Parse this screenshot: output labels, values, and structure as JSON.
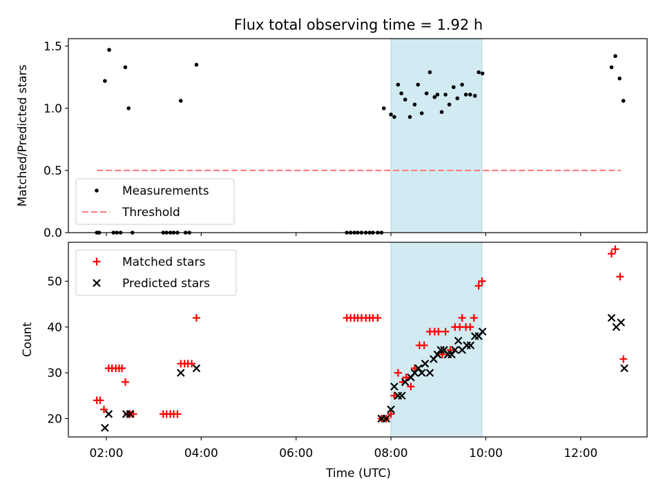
{
  "title": "Flux total observing time = 1.92 h",
  "colors": {
    "measurement": "#000000",
    "threshold": "#ff7f7f",
    "matched": "#ff0000",
    "predicted": "#000000",
    "highlight": "#add8e6"
  },
  "chart_data": [
    {
      "type": "scatter",
      "ylabel": "Matched/Predicted stars",
      "xlabel": "",
      "xlim": [
        1.2,
        13.4
      ],
      "ylim": [
        0,
        1.56
      ],
      "x_ticks": [
        2,
        4,
        6,
        8,
        10,
        12
      ],
      "y_ticks": [
        0,
        0.5,
        1.0,
        1.5
      ],
      "y_tick_labels": [
        "0.0",
        "0.5",
        "1.0",
        "1.5"
      ],
      "show_x_tick_labels": false,
      "highlight_span": [
        8.0,
        9.92
      ],
      "legend": {
        "position": "lower-left",
        "entries": [
          {
            "label": "Measurements",
            "marker": "dot"
          },
          {
            "label": "Threshold",
            "marker": "dash"
          }
        ]
      },
      "threshold": {
        "name": "Threshold",
        "y": 0.5,
        "x_range": [
          1.8,
          12.85
        ]
      },
      "series": [
        {
          "name": "Measurements",
          "points": [
            [
              1.8,
              0
            ],
            [
              1.85,
              0
            ],
            [
              1.97,
              1.22
            ],
            [
              2.06,
              1.47
            ],
            [
              2.15,
              0
            ],
            [
              2.22,
              0
            ],
            [
              2.3,
              0
            ],
            [
              2.4,
              1.33
            ],
            [
              2.47,
              1.0
            ],
            [
              2.55,
              0
            ],
            [
              3.2,
              0
            ],
            [
              3.27,
              0
            ],
            [
              3.35,
              0
            ],
            [
              3.42,
              0
            ],
            [
              3.5,
              0
            ],
            [
              3.57,
              1.06
            ],
            [
              3.67,
              0
            ],
            [
              3.75,
              0
            ],
            [
              3.9,
              1.35
            ],
            [
              7.07,
              0
            ],
            [
              7.15,
              0
            ],
            [
              7.23,
              0
            ],
            [
              7.3,
              0
            ],
            [
              7.38,
              0
            ],
            [
              7.47,
              0
            ],
            [
              7.55,
              0
            ],
            [
              7.62,
              0
            ],
            [
              7.72,
              0
            ],
            [
              7.8,
              0.0
            ],
            [
              7.85,
              1.0
            ],
            [
              8.0,
              0.95
            ],
            [
              8.07,
              0.93
            ],
            [
              8.15,
              1.19
            ],
            [
              8.22,
              1.12
            ],
            [
              8.3,
              1.07
            ],
            [
              8.4,
              0.93
            ],
            [
              8.5,
              1.03
            ],
            [
              8.57,
              1.19
            ],
            [
              8.65,
              0.96
            ],
            [
              8.75,
              1.12
            ],
            [
              8.82,
              1.29
            ],
            [
              8.92,
              1.09
            ],
            [
              8.98,
              1.11
            ],
            [
              9.07,
              0.97
            ],
            [
              9.15,
              1.11
            ],
            [
              9.23,
              1.03
            ],
            [
              9.32,
              1.17
            ],
            [
              9.4,
              1.08
            ],
            [
              9.5,
              1.19
            ],
            [
              9.58,
              1.11
            ],
            [
              9.67,
              1.11
            ],
            [
              9.77,
              1.1
            ],
            [
              9.85,
              1.29
            ],
            [
              9.93,
              1.28
            ],
            [
              12.65,
              1.33
            ],
            [
              12.73,
              1.42
            ],
            [
              12.82,
              1.24
            ],
            [
              12.9,
              1.06
            ]
          ]
        }
      ]
    },
    {
      "type": "scatter",
      "ylabel": "Count",
      "xlabel": "Time (UTC)",
      "xlim": [
        1.2,
        13.4
      ],
      "ylim": [
        16,
        58.5
      ],
      "x_ticks": [
        2,
        4,
        6,
        8,
        10,
        12
      ],
      "x_tick_labels": [
        "02:00",
        "04:00",
        "06:00",
        "08:00",
        "10:00",
        "12:00"
      ],
      "y_ticks": [
        20,
        30,
        40,
        50
      ],
      "y_tick_labels": [
        "20",
        "30",
        "40",
        "50"
      ],
      "show_x_tick_labels": true,
      "highlight_span": [
        8.0,
        9.92
      ],
      "legend": {
        "position": "upper-left",
        "entries": [
          {
            "label": "Matched stars",
            "marker": "plus"
          },
          {
            "label": "Predicted stars",
            "marker": "x"
          }
        ]
      },
      "series": [
        {
          "name": "Matched stars",
          "marker": "plus",
          "points": [
            [
              1.8,
              24
            ],
            [
              1.87,
              24
            ],
            [
              1.95,
              22
            ],
            [
              2.05,
              31
            ],
            [
              2.12,
              31
            ],
            [
              2.2,
              31
            ],
            [
              2.27,
              31
            ],
            [
              2.33,
              31
            ],
            [
              2.4,
              28
            ],
            [
              2.45,
              21
            ],
            [
              2.5,
              21
            ],
            [
              2.57,
              21
            ],
            [
              3.2,
              21
            ],
            [
              3.27,
              21
            ],
            [
              3.35,
              21
            ],
            [
              3.42,
              21
            ],
            [
              3.5,
              21
            ],
            [
              3.57,
              32
            ],
            [
              3.65,
              32
            ],
            [
              3.72,
              32
            ],
            [
              3.8,
              32
            ],
            [
              3.9,
              42
            ],
            [
              7.07,
              42
            ],
            [
              7.15,
              42
            ],
            [
              7.23,
              42
            ],
            [
              7.3,
              42
            ],
            [
              7.38,
              42
            ],
            [
              7.47,
              42
            ],
            [
              7.55,
              42
            ],
            [
              7.62,
              42
            ],
            [
              7.72,
              42
            ],
            [
              7.8,
              20
            ],
            [
              7.9,
              20
            ],
            [
              8.0,
              21
            ],
            [
              8.07,
              25
            ],
            [
              8.15,
              30
            ],
            [
              8.25,
              28
            ],
            [
              8.32,
              29
            ],
            [
              8.42,
              27
            ],
            [
              8.5,
              31
            ],
            [
              8.6,
              36
            ],
            [
              8.7,
              36
            ],
            [
              8.82,
              39
            ],
            [
              8.92,
              39
            ],
            [
              9.0,
              39
            ],
            [
              9.08,
              34
            ],
            [
              9.15,
              39
            ],
            [
              9.25,
              35
            ],
            [
              9.35,
              40
            ],
            [
              9.45,
              40
            ],
            [
              9.5,
              42
            ],
            [
              9.58,
              40
            ],
            [
              9.67,
              40
            ],
            [
              9.75,
              42
            ],
            [
              9.85,
              49
            ],
            [
              9.92,
              50
            ],
            [
              12.65,
              56
            ],
            [
              12.73,
              57
            ],
            [
              12.83,
              51
            ],
            [
              12.9,
              33
            ]
          ]
        },
        {
          "name": "Predicted stars",
          "marker": "x",
          "points": [
            [
              1.97,
              18
            ],
            [
              2.05,
              21
            ],
            [
              2.42,
              21
            ],
            [
              2.5,
              21
            ],
            [
              3.57,
              30
            ],
            [
              3.9,
              31
            ],
            [
              7.8,
              20
            ],
            [
              7.9,
              20
            ],
            [
              8.0,
              22
            ],
            [
              8.07,
              27
            ],
            [
              8.15,
              25
            ],
            [
              8.23,
              25
            ],
            [
              8.3,
              28
            ],
            [
              8.42,
              29
            ],
            [
              8.5,
              30
            ],
            [
              8.58,
              31
            ],
            [
              8.65,
              30
            ],
            [
              8.72,
              32
            ],
            [
              8.82,
              30
            ],
            [
              8.9,
              33
            ],
            [
              8.98,
              34
            ],
            [
              9.05,
              35
            ],
            [
              9.12,
              35
            ],
            [
              9.2,
              34
            ],
            [
              9.28,
              34
            ],
            [
              9.35,
              35
            ],
            [
              9.42,
              37
            ],
            [
              9.5,
              35
            ],
            [
              9.6,
              36
            ],
            [
              9.68,
              36
            ],
            [
              9.77,
              38
            ],
            [
              9.85,
              38
            ],
            [
              9.93,
              39
            ],
            [
              12.65,
              42
            ],
            [
              12.75,
              40
            ],
            [
              12.85,
              41
            ],
            [
              12.92,
              31
            ]
          ]
        }
      ]
    }
  ]
}
